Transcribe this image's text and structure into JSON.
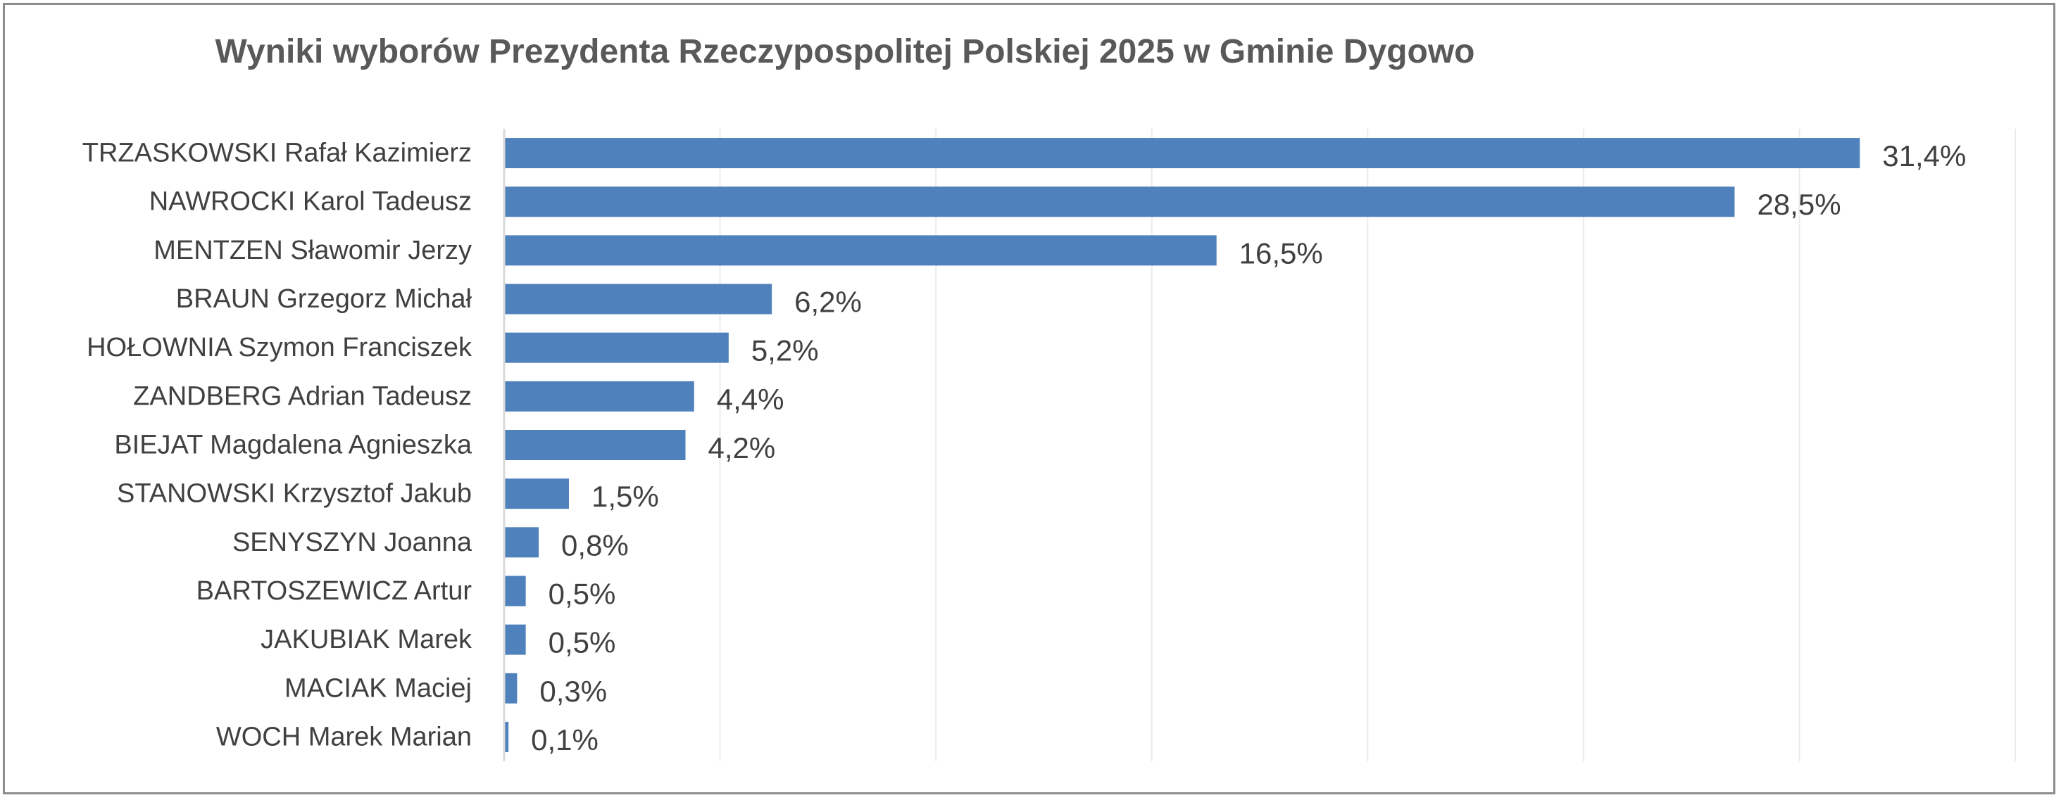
{
  "chart_data": {
    "type": "bar",
    "orientation": "horizontal",
    "title": "Wyniki wyborów Prezydenta Rzeczypospolitej Polskiej 2025 w Gminie Dygowo",
    "categories": [
      "TRZASKOWSKI Rafał Kazimierz",
      "NAWROCKI Karol Tadeusz",
      "MENTZEN Sławomir Jerzy",
      "BRAUN Grzegorz Michał",
      "HOŁOWNIA Szymon Franciszek",
      "ZANDBERG Adrian Tadeusz",
      "BIEJAT Magdalena Agnieszka",
      "STANOWSKI Krzysztof Jakub",
      "SENYSZYN Joanna",
      "BARTOSZEWICZ Artur",
      "JAKUBIAK Marek",
      "MACIAK Maciej",
      "WOCH Marek Marian"
    ],
    "values": [
      31.4,
      28.5,
      16.5,
      6.2,
      5.2,
      4.4,
      4.2,
      1.5,
      0.8,
      0.5,
      0.5,
      0.3,
      0.1
    ],
    "data_labels": [
      "31,4%",
      "28,5%",
      "16,5%",
      "6,2%",
      "5,2%",
      "4,4%",
      "4,2%",
      "1,5%",
      "0,8%",
      "0,5%",
      "0,5%",
      "0,3%",
      "0,1%"
    ],
    "xlim": [
      0,
      35
    ],
    "grid": true,
    "legend": "none",
    "bar_color": "#4F81BD",
    "gridline_color": "#EBEBEB",
    "text_color": "#404040",
    "title_color": "#595959"
  }
}
